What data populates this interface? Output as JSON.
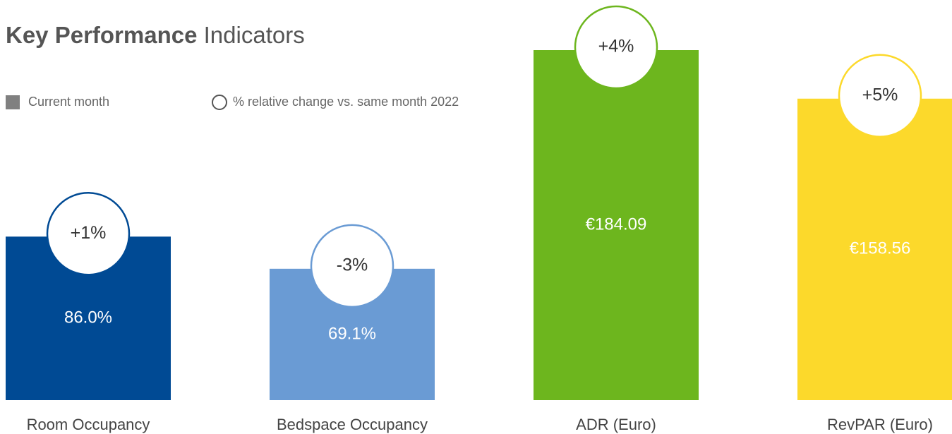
{
  "chart_data": {
    "type": "bar",
    "title": {
      "bold": "Key Performance",
      "regular": "Indicators"
    },
    "categories": [
      "Room Occupancy",
      "Bedspace Occupancy",
      "ADR (Euro)",
      "RevPAR (Euro)"
    ],
    "colors": [
      "#004a94",
      "#6a9bd4",
      "#6db61e",
      "#fcd92b"
    ],
    "legend_color": "#808080",
    "series": [
      {
        "name": "Current month",
        "values": [
          86.0,
          69.1,
          184.09,
          158.56
        ],
        "value_labels": [
          "86.0%",
          "69.1%",
          "€184.09",
          "€158.56"
        ]
      },
      {
        "name": "% relative change vs. same month 2022",
        "values": [
          1,
          -3,
          4,
          5
        ],
        "value_labels": [
          "+1%",
          "-3%",
          "+4%",
          "+5%"
        ]
      }
    ]
  }
}
